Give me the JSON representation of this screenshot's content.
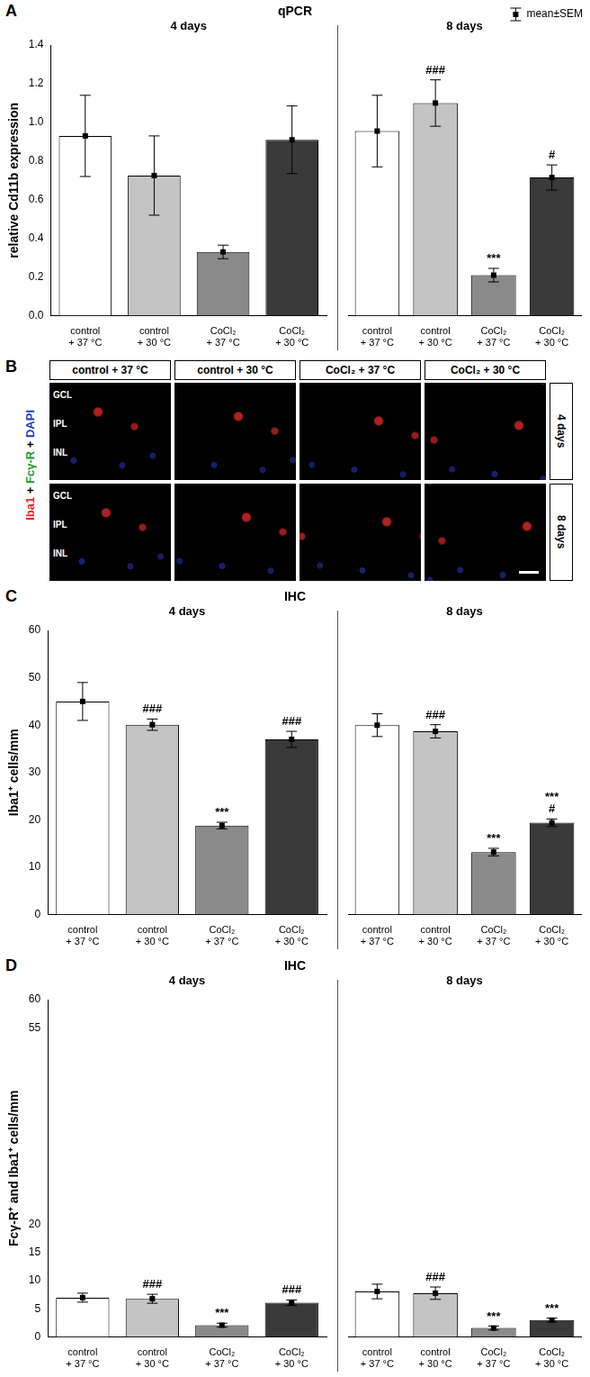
{
  "chart_data": [
    {
      "panel": "A",
      "type": "bar",
      "title": "qPCR",
      "y_label": "relative Cd11b expression",
      "ylim": [
        0,
        1.4
      ],
      "yticks": [
        {
          "value": 0,
          "label": "0.0"
        },
        0.2,
        0.4,
        0.6,
        0.8,
        {
          "value": 1,
          "label": "1.0"
        },
        1.2,
        1.4
      ],
      "colors": [
        "#ffffff",
        "#c4c4c4",
        "#8a8a8a",
        "#3a3a3a"
      ],
      "grid": false,
      "legend": "top right",
      "legend_text": "mean±SEM",
      "groups": [
        {
          "title": "4 days",
          "categories": [
            "control + 37 °C",
            "control + 30 °C",
            "CoCl₂ + 37 °C",
            "CoCl₂ + 30 °C"
          ],
          "values": [
            0.93,
            0.725,
            0.33,
            0.91
          ],
          "errors": [
            0.21,
            0.205,
            0.035,
            0.175
          ],
          "annotations": [
            [],
            [],
            [],
            []
          ]
        },
        {
          "title": "8 days",
          "categories": [
            "control + 37 °C",
            "control + 30 °C",
            "CoCl₂ + 37 °C",
            "CoCl₂ + 30 °C"
          ],
          "values": [
            0.955,
            1.1,
            0.21,
            0.715
          ],
          "errors": [
            0.185,
            0.12,
            0.035,
            0.065
          ],
          "annotations": [
            [],
            [
              "###"
            ],
            [
              "***"
            ],
            [
              "#"
            ]
          ]
        }
      ]
    },
    {
      "panel": "C",
      "type": "bar",
      "title": "IHC",
      "y_label": "Iba1⁺ cells/mm",
      "ylim": [
        0,
        60
      ],
      "yticks": [
        0,
        10,
        20,
        30,
        40,
        50,
        60
      ],
      "colors": [
        "#ffffff",
        "#c4c4c4",
        "#8a8a8a",
        "#3a3a3a"
      ],
      "grid": false,
      "groups": [
        {
          "title": "4 days",
          "categories": [
            "control + 37 °C",
            "control + 30 °C",
            "CoCl₂ + 37 °C",
            "CoCl₂ + 30 °C"
          ],
          "values": [
            45,
            40.1,
            18.8,
            37
          ],
          "errors": [
            4,
            1.2,
            0.7,
            1.7
          ],
          "annotations": [
            [],
            [
              "###"
            ],
            [
              "***"
            ],
            [
              "###"
            ]
          ]
        },
        {
          "title": "8 days",
          "categories": [
            "control + 37 °C",
            "control + 30 °C",
            "CoCl₂ + 37 °C",
            "CoCl₂ + 30 °C"
          ],
          "values": [
            40,
            38.7,
            13.2,
            19.4
          ],
          "errors": [
            2.4,
            1.4,
            0.8,
            0.8
          ],
          "annotations": [
            [],
            [
              "###"
            ],
            [
              "***"
            ],
            [
              "***",
              "#"
            ]
          ]
        }
      ]
    },
    {
      "panel": "D",
      "type": "bar",
      "title": "IHC",
      "y_label": "Fcγ-R⁺ and Iba1⁺ cells/mm",
      "ylim": [
        0,
        60
      ],
      "yticks": [
        0,
        5,
        10,
        15,
        20,
        55,
        60
      ],
      "colors": [
        "#ffffff",
        "#c4c4c4",
        "#8a8a8a",
        "#3a3a3a"
      ],
      "grid": false,
      "groups": [
        {
          "title": "4 days",
          "categories": [
            "control + 37 °C",
            "control + 30 °C",
            "CoCl₂ + 37 °C",
            "CoCl₂ + 30 °C"
          ],
          "values": [
            7.0,
            6.8,
            2.1,
            6.1
          ],
          "errors": [
            0.8,
            0.8,
            0.35,
            0.5
          ],
          "annotations": [
            [],
            [
              "###"
            ],
            [
              "***"
            ],
            [
              "###"
            ]
          ]
        },
        {
          "title": "8 days",
          "categories": [
            "control + 37 °C",
            "control + 30 °C",
            "CoCl₂ + 37 °C",
            "CoCl₂ + 30 °C"
          ],
          "values": [
            8.1,
            7.8,
            1.6,
            3.0
          ],
          "errors": [
            1.3,
            1.1,
            0.35,
            0.35
          ],
          "annotations": [
            [],
            [
              "###"
            ],
            [
              "***"
            ],
            [
              "***"
            ]
          ]
        }
      ]
    }
  ],
  "image_panel": {
    "panel": "B",
    "stain_label": [
      {
        "text": "Iba1",
        "color": "#e52421"
      },
      {
        "text": "+",
        "color": "#000000"
      },
      {
        "text": "Fcγ-R",
        "color": "#22a02c"
      },
      {
        "text": "+",
        "color": "#000000"
      },
      {
        "text": "DAPI",
        "color": "#1f3fbf"
      }
    ],
    "columns": [
      "control + 37 °C",
      "control + 30 °C",
      "CoCl₂ + 37 °C",
      "CoCl₂ + 30 °C"
    ],
    "rows": [
      "4 days",
      "8 days"
    ],
    "layers": [
      "GCL",
      "IPL",
      "INL"
    ]
  }
}
